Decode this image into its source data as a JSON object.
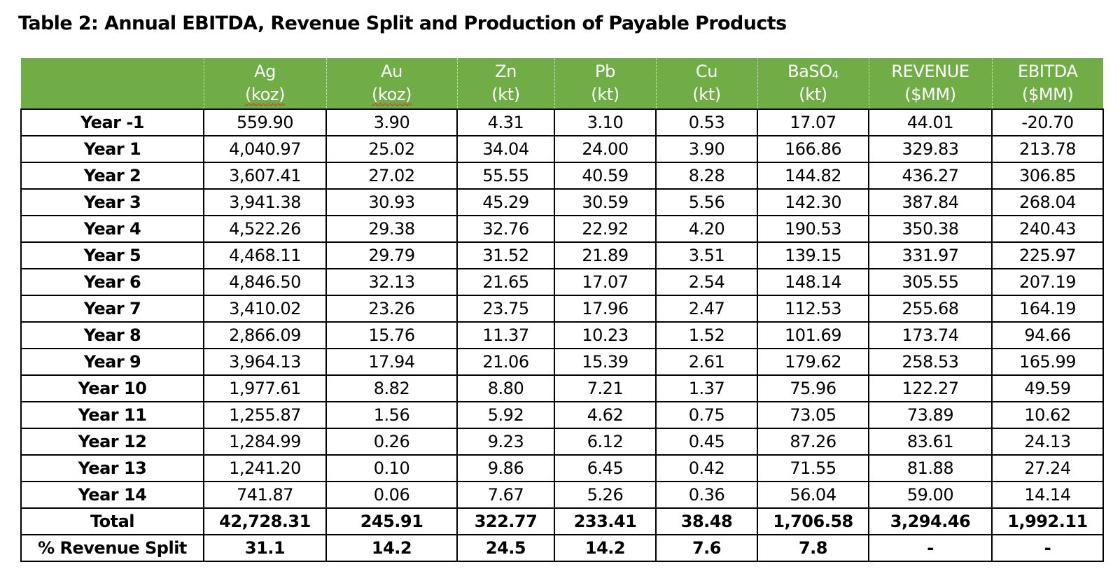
{
  "title": "Table 2: Annual EBITDA, Revenue Split and Production of Payable Products",
  "headers": [
    {
      "name": "",
      "unit": ""
    },
    {
      "name": "Ag",
      "unit": "(koz)"
    },
    {
      "name": "Au",
      "unit": "(koz)"
    },
    {
      "name": "Zn",
      "unit": "(kt)"
    },
    {
      "name": "Pb",
      "unit": "(kt)"
    },
    {
      "name": "Cu",
      "unit": "(kt)"
    },
    {
      "name": "BaSO",
      "sub": "4",
      "unit": "(kt)"
    },
    {
      "name": "REVENUE",
      "unit": "($MM)"
    },
    {
      "name": "EBITDA",
      "unit": "($MM)"
    }
  ],
  "rows": [
    [
      "Year -1",
      "559.90",
      "3.90",
      "4.31",
      "3.10",
      "0.53",
      "17.07",
      "44.01",
      "-20.70"
    ],
    [
      "Year 1",
      "4,040.97",
      "25.02",
      "34.04",
      "24.00",
      "3.90",
      "166.86",
      "329.83",
      "213.78"
    ],
    [
      "Year 2",
      "3,607.41",
      "27.02",
      "55.55",
      "40.59",
      "8.28",
      "144.82",
      "436.27",
      "306.85"
    ],
    [
      "Year 3",
      "3,941.38",
      "30.93",
      "45.29",
      "30.59",
      "5.56",
      "142.30",
      "387.84",
      "268.04"
    ],
    [
      "Year 4",
      "4,522.26",
      "29.38",
      "32.76",
      "22.92",
      "4.20",
      "190.53",
      "350.38",
      "240.43"
    ],
    [
      "Year 5",
      "4,468.11",
      "29.79",
      "31.52",
      "21.89",
      "3.51",
      "139.15",
      "331.97",
      "225.97"
    ],
    [
      "Year 6",
      "4,846.50",
      "32.13",
      "21.65",
      "17.07",
      "2.54",
      "148.14",
      "305.55",
      "207.19"
    ],
    [
      "Year 7",
      "3,410.02",
      "23.26",
      "23.75",
      "17.96",
      "2.47",
      "112.53",
      "255.68",
      "164.19"
    ],
    [
      "Year 8",
      "2,866.09",
      "15.76",
      "11.37",
      "10.23",
      "1.52",
      "101.69",
      "173.74",
      "94.66"
    ],
    [
      "Year 9",
      "3,964.13",
      "17.94",
      "21.06",
      "15.39",
      "2.61",
      "179.62",
      "258.53",
      "165.99"
    ],
    [
      "Year 10",
      "1,977.61",
      "8.82",
      "8.80",
      "7.21",
      "1.37",
      "75.96",
      "122.27",
      "49.59"
    ],
    [
      "Year 11",
      "1,255.87",
      "1.56",
      "5.92",
      "4.62",
      "0.75",
      "73.05",
      "73.89",
      "10.62"
    ],
    [
      "Year 12",
      "1,284.99",
      "0.26",
      "9.23",
      "6.12",
      "0.45",
      "87.26",
      "83.61",
      "24.13"
    ],
    [
      "Year 13",
      "1,241.20",
      "0.10",
      "9.86",
      "6.45",
      "0.42",
      "71.55",
      "81.88",
      "27.24"
    ],
    [
      "Year 14",
      "741.87",
      "0.06",
      "7.67",
      "5.26",
      "0.36",
      "56.04",
      "59.00",
      "14.14"
    ]
  ],
  "total_row": [
    "Total",
    "42,728.31",
    "245.91",
    "322.77",
    "233.41",
    "38.48",
    "1,706.58",
    "3,294.46",
    "1,992.11"
  ],
  "split_row": [
    "% Revenue Split",
    "31.1",
    "14.2",
    "24.5",
    "14.2",
    "7.6",
    "7.8",
    "-",
    "-"
  ],
  "colors": {
    "header_bg": "#70ad47",
    "header_text": "#ffffff",
    "border": "#000000"
  }
}
